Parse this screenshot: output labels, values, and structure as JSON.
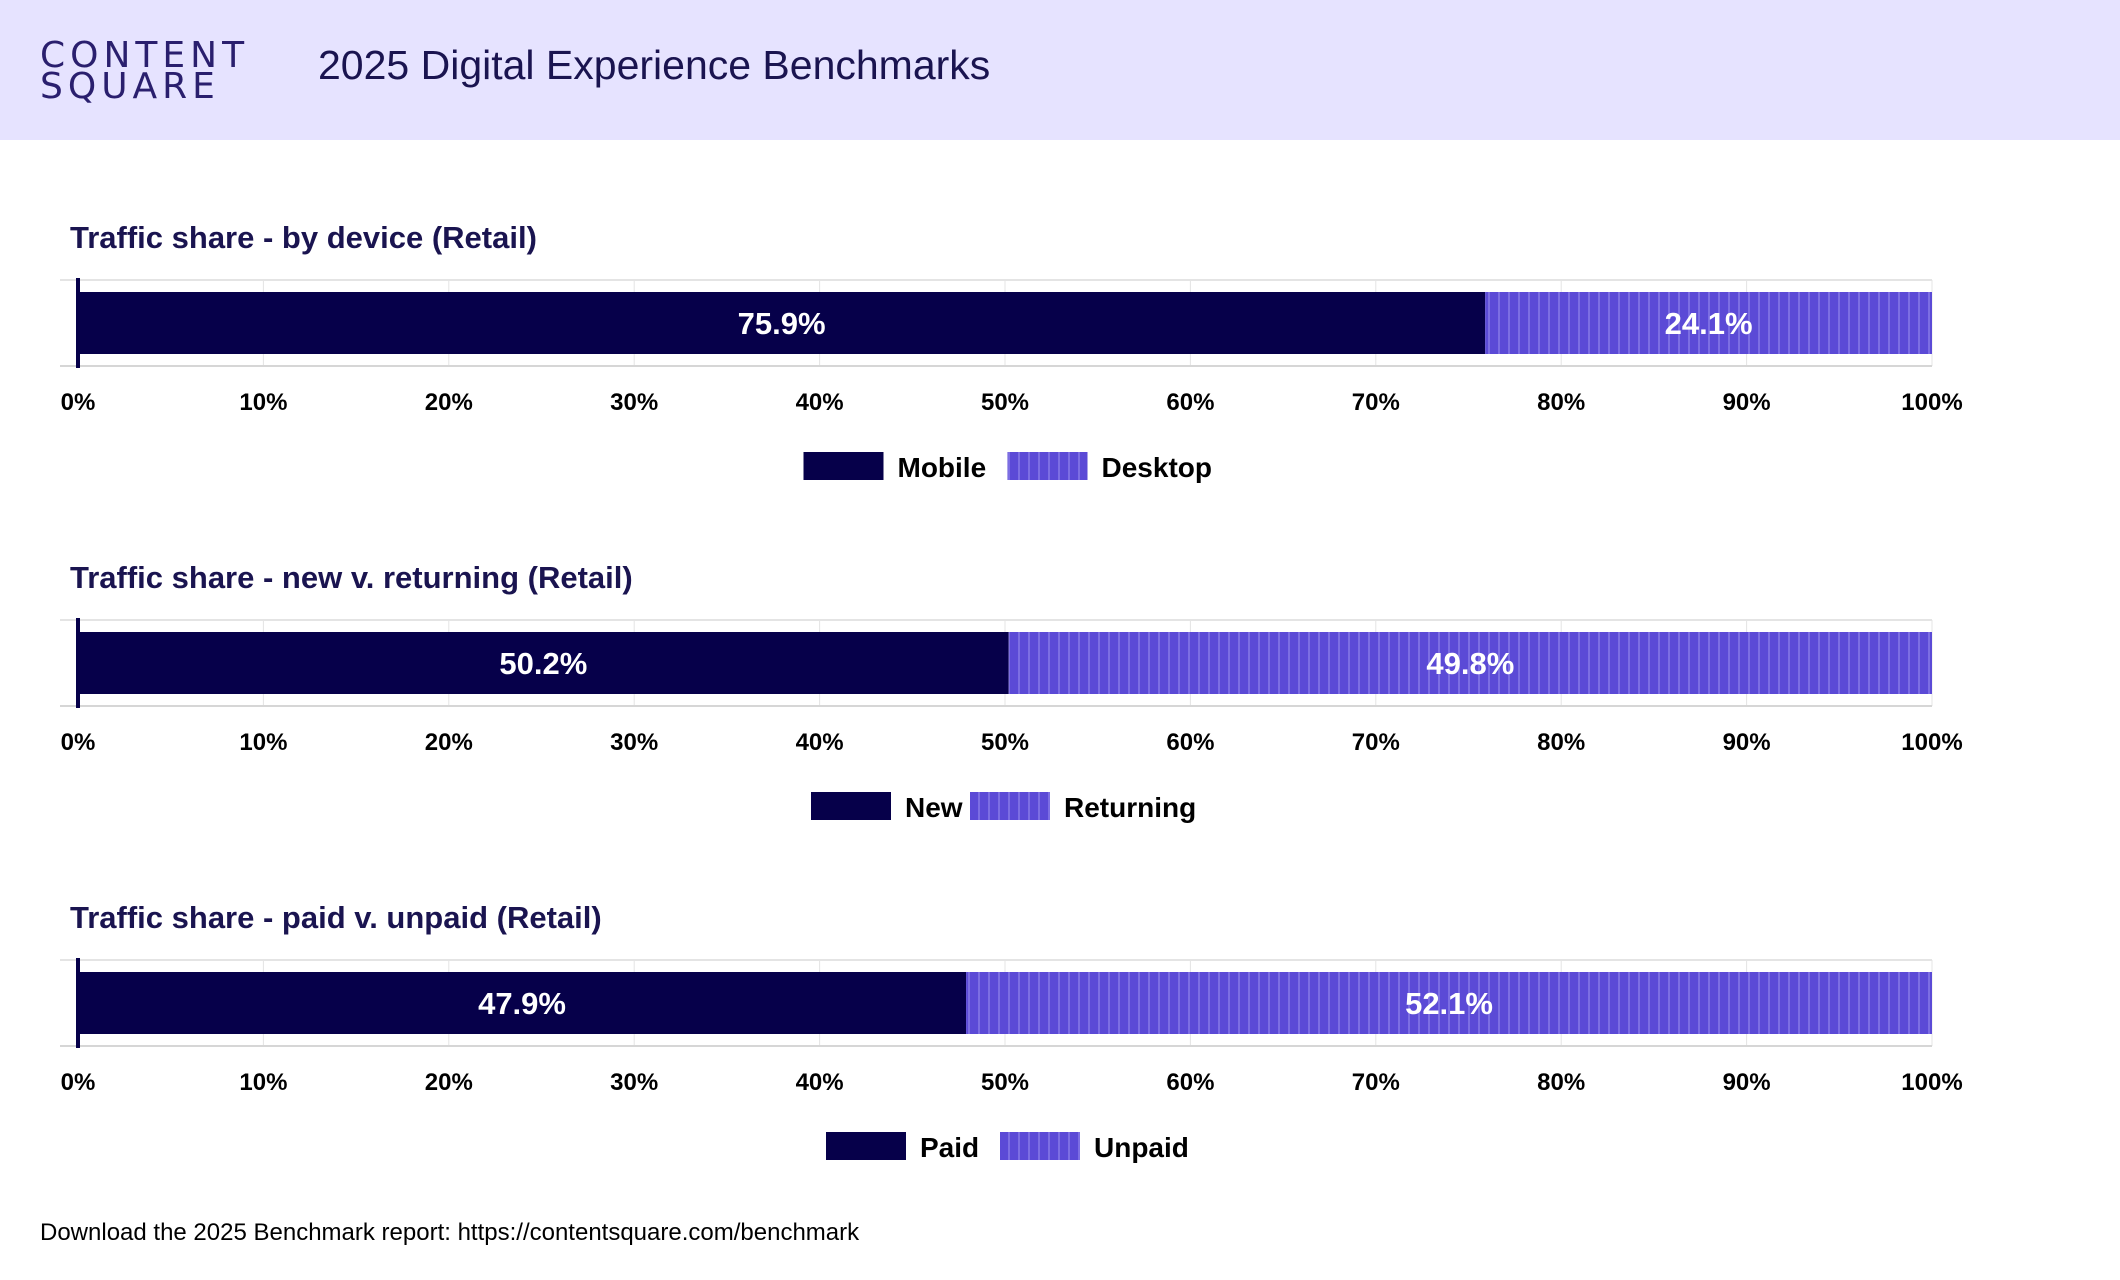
{
  "header": {
    "logo_line1": "CONTENT",
    "logo_line2": "SQUARE",
    "title": "2025 Digital Experience Benchmarks"
  },
  "colors": {
    "primary": "#06004a",
    "secondary": "#5b4ad6",
    "secondary_stripe": "#7c6ee3",
    "header_bg": "#e6e3ff"
  },
  "chart_data": [
    {
      "type": "bar",
      "orientation": "horizontal-stacked",
      "title": "Traffic share - by device (Retail)",
      "series": [
        {
          "name": "Mobile",
          "values": [
            75.9
          ],
          "label": "75.9%"
        },
        {
          "name": "Desktop",
          "values": [
            24.1
          ],
          "label": "24.1%"
        }
      ],
      "xlim": [
        0,
        100
      ],
      "xticks": [
        "0%",
        "10%",
        "20%",
        "30%",
        "40%",
        "50%",
        "60%",
        "70%",
        "80%",
        "90%",
        "100%"
      ],
      "legend": "bottom-center"
    },
    {
      "type": "bar",
      "orientation": "horizontal-stacked",
      "title": "Traffic share - new v. returning (Retail)",
      "series": [
        {
          "name": "New",
          "values": [
            50.2
          ],
          "label": "50.2%"
        },
        {
          "name": "Returning",
          "values": [
            49.8
          ],
          "label": "49.8%"
        }
      ],
      "xlim": [
        0,
        100
      ],
      "xticks": [
        "0%",
        "10%",
        "20%",
        "30%",
        "40%",
        "50%",
        "60%",
        "70%",
        "80%",
        "90%",
        "100%"
      ],
      "legend": "bottom-center"
    },
    {
      "type": "bar",
      "orientation": "horizontal-stacked",
      "title": "Traffic share - paid v. unpaid (Retail)",
      "series": [
        {
          "name": "Paid",
          "values": [
            47.9
          ],
          "label": "47.9%"
        },
        {
          "name": "Unpaid",
          "values": [
            52.1
          ],
          "label": "52.1%"
        }
      ],
      "xlim": [
        0,
        100
      ],
      "xticks": [
        "0%",
        "10%",
        "20%",
        "30%",
        "40%",
        "50%",
        "60%",
        "70%",
        "80%",
        "90%",
        "100%"
      ],
      "legend": "bottom-center"
    }
  ],
  "footer": {
    "text": "Download the 2025 Benchmark report: https://contentsquare.com/benchmark"
  }
}
